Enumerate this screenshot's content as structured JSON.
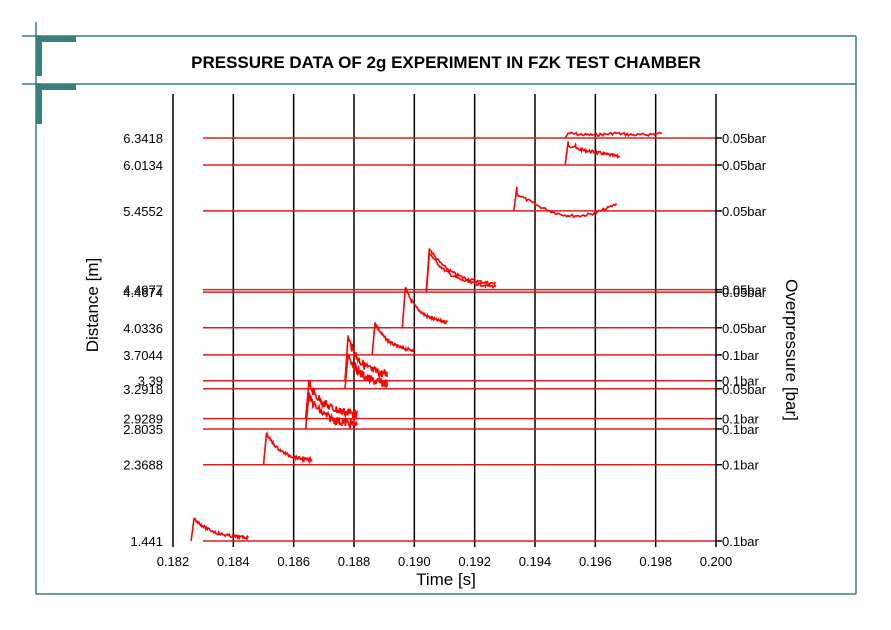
{
  "chart_data": {
    "type": "line",
    "title": "PRESSURE DATA OF 2g EXPERIMENT IN FZK TEST CHAMBER",
    "xlabel": "Time [s]",
    "ylabel": "Distance [m]",
    "ylabel_right": "Overpressure [bar]",
    "xlim": [
      0.182,
      0.2
    ],
    "x_ticks": [
      "0.182",
      "0.184",
      "0.186",
      "0.188",
      "0.190",
      "0.192",
      "0.194",
      "0.196",
      "0.198",
      "0.200"
    ],
    "grid": "vertical",
    "colors": {
      "trace": "#ff0000",
      "reference": "#d62020",
      "frame": "#3a7d7d",
      "gridline": "#000000"
    },
    "sensors": [
      {
        "distance": "6.3418",
        "scale": "0.05bar",
        "t_start": 0.195,
        "t_end": 0.1982,
        "peak": 6.4,
        "shape": "late"
      },
      {
        "distance": "6.0134",
        "scale": "0.05bar",
        "t_start": 0.195,
        "t_end": 0.1968,
        "peak": 6.3,
        "shape": "step"
      },
      {
        "distance": "5.4552",
        "scale": "0.05bar",
        "t_start": 0.1933,
        "t_end": 0.1967,
        "peak": 5.75,
        "shape": "dip"
      },
      {
        "distance": "4.4977",
        "scale": "0.05bar",
        "t_start": 0.1904,
        "t_end": 0.1927,
        "peak": 5.0,
        "shape": "decay"
      },
      {
        "distance": "4.4674",
        "scale": "0.05bar",
        "t_start": 0.1904,
        "t_end": 0.1927,
        "peak": 4.95,
        "shape": "decay"
      },
      {
        "distance": "4.0336",
        "scale": "0.05bar",
        "t_start": 0.1896,
        "t_end": 0.1911,
        "peak": 4.52,
        "shape": "decay"
      },
      {
        "distance": "3.7044",
        "scale": "0.1bar",
        "t_start": 0.1886,
        "t_end": 0.19,
        "peak": 4.1,
        "shape": "decay"
      },
      {
        "distance": "3.39",
        "scale": "0.1bar",
        "t_start": 0.1877,
        "t_end": 0.1891,
        "peak": 3.92,
        "shape": "noisy"
      },
      {
        "distance": "3.2918",
        "scale": "0.05bar",
        "t_start": 0.1877,
        "t_end": 0.1891,
        "peak": 3.72,
        "shape": "noisy"
      },
      {
        "distance": "2.9289",
        "scale": "0.1bar",
        "t_start": 0.1864,
        "t_end": 0.1881,
        "peak": 3.35,
        "shape": "noisy"
      },
      {
        "distance": "2.8035",
        "scale": "0.1bar",
        "t_start": 0.1864,
        "t_end": 0.1881,
        "peak": 3.2,
        "shape": "noisy"
      },
      {
        "distance": "2.3688",
        "scale": "0.1bar",
        "t_start": 0.185,
        "t_end": 0.1866,
        "peak": 2.75,
        "shape": "decay"
      },
      {
        "distance": "1.441",
        "scale": "0.1bar",
        "t_start": 0.1826,
        "t_end": 0.1845,
        "peak": 1.72,
        "shape": "decay"
      }
    ]
  }
}
